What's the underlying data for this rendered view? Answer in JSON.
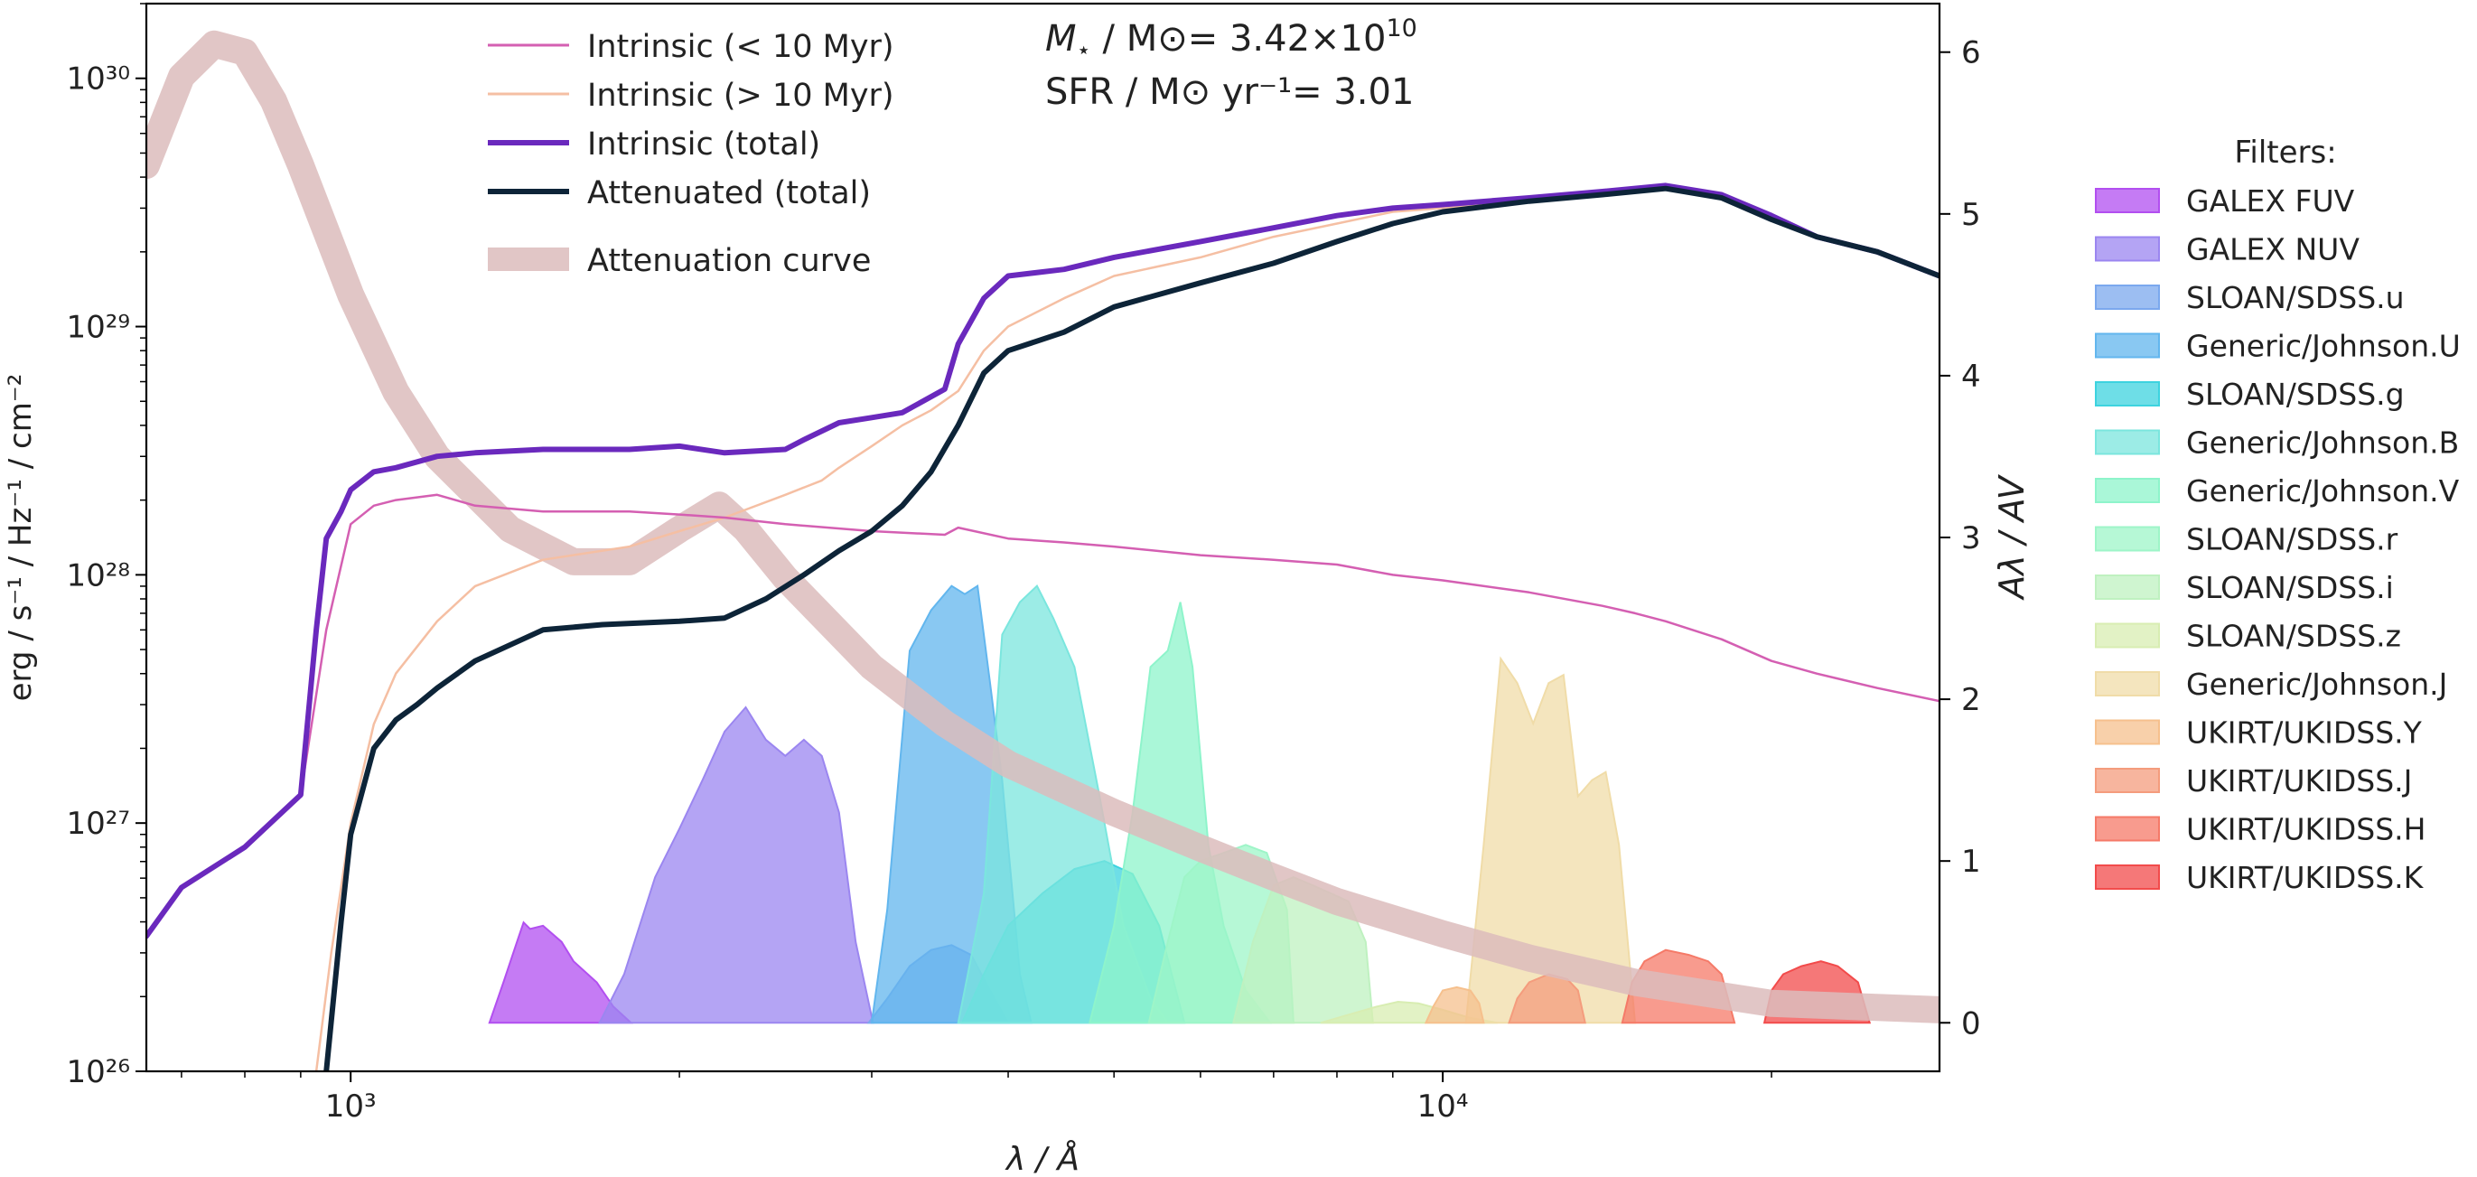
{
  "chart_data": {
    "type": "line",
    "title": "",
    "xlabel": "λ / Å",
    "ylabel": "erg / s⁻¹ / Hz⁻¹ / cm⁻²",
    "y2label": "Aλ / AV",
    "x_scale": "log",
    "y_scale": "log",
    "xlim": [
      650,
      28500
    ],
    "ylim": [
      1e+26,
      2e+30
    ],
    "y2lim": [
      -0.3,
      6.3
    ],
    "x_ticks": [
      {
        "value": 1000,
        "label": "10³"
      },
      {
        "value": 10000,
        "label": "10⁴"
      }
    ],
    "y_ticks": [
      {
        "value": 1e+26,
        "label": "10²⁶"
      },
      {
        "value": 1e+27,
        "label": "10²⁷"
      },
      {
        "value": 1e+28,
        "label": "10²⁸"
      },
      {
        "value": 1e+29,
        "label": "10²⁹"
      },
      {
        "value": 1e+30,
        "label": "10³⁰"
      }
    ],
    "y2_ticks": [
      {
        "value": 0,
        "label": "0"
      },
      {
        "value": 1,
        "label": "1"
      },
      {
        "value": 2,
        "label": "2"
      },
      {
        "value": 3,
        "label": "3"
      },
      {
        "value": 4,
        "label": "4"
      },
      {
        "value": 5,
        "label": "5"
      },
      {
        "value": 6,
        "label": "6"
      }
    ],
    "annotations": {
      "mass_prefix": "M",
      "mass_sub": "⋆",
      "mass_text": " / M⊙= 3.42×10",
      "mass_exp": "10",
      "sfr_text": "SFR / M⊙ yr⁻¹= 3.01"
    },
    "series": [
      {
        "name": "Intrinsic (< 10 Myr)",
        "color": "#d45fb2",
        "width": 2.5,
        "axis": "left",
        "x": [
          650,
          700,
          800,
          900,
          950,
          1000,
          1050,
          1100,
          1200,
          1300,
          1500,
          1800,
          2000,
          2200,
          2500,
          3000,
          3500,
          3600,
          4000,
          4500,
          5000,
          6000,
          7000,
          8000,
          9000,
          10000,
          12000,
          14000,
          15000,
          16000,
          18000,
          20000,
          22000,
          25000,
          28500
        ],
        "y": [
          3.5e+26,
          5.5e+26,
          8e+26,
          1.3e+27,
          6e+27,
          1.6e+28,
          1.9e+28,
          2e+28,
          2.1e+28,
          1.9e+28,
          1.8e+28,
          1.8e+28,
          1.75e+28,
          1.7e+28,
          1.6e+28,
          1.5e+28,
          1.45e+28,
          1.55e+28,
          1.4e+28,
          1.35e+28,
          1.3e+28,
          1.2e+28,
          1.15e+28,
          1.1e+28,
          1e+28,
          9.5e+27,
          8.5e+27,
          7.5e+27,
          7e+27,
          6.5e+27,
          5.5e+27,
          4.5e+27,
          4e+27,
          3.5e+27,
          3.1e+27
        ]
      },
      {
        "name": "Intrinsic (> 10 Myr)",
        "color": "#f5bfa3",
        "width": 2.5,
        "axis": "left",
        "x": [
          930,
          960,
          1000,
          1050,
          1100,
          1200,
          1300,
          1500,
          1800,
          2000,
          2200,
          2500,
          2700,
          2800,
          3000,
          3200,
          3400,
          3600,
          3800,
          4000,
          4500,
          5000,
          6000,
          7000,
          8000,
          9000,
          10000,
          12000,
          14000,
          16000,
          18000,
          20000,
          22000,
          25000,
          28500
        ],
        "y": [
          1e+26,
          3e+26,
          1e+27,
          2.5e+27,
          4e+27,
          6.5e+27,
          9e+27,
          1.15e+28,
          1.3e+28,
          1.5e+28,
          1.7e+28,
          2.1e+28,
          2.4e+28,
          2.7e+28,
          3.3e+28,
          4e+28,
          4.6e+28,
          5.5e+28,
          8e+28,
          1e+29,
          1.3e+29,
          1.6e+29,
          1.9e+29,
          2.3e+29,
          2.6e+29,
          2.9e+29,
          3e+29,
          3.2e+29,
          3.4e+29,
          3.6e+29,
          3.3e+29,
          2.7e+29,
          2.3e+29,
          2e+29,
          1.6e+29
        ]
      },
      {
        "name": "Intrinsic (total)",
        "color": "#6a29bd",
        "width": 6,
        "axis": "left",
        "x": [
          650,
          700,
          800,
          900,
          930,
          950,
          980,
          1000,
          1050,
          1100,
          1200,
          1300,
          1500,
          1800,
          2000,
          2200,
          2500,
          2600,
          2800,
          3000,
          3200,
          3500,
          3600,
          3800,
          4000,
          4500,
          5000,
          6000,
          7000,
          8000,
          9000,
          10000,
          12000,
          14000,
          16000,
          18000,
          20000,
          22000,
          25000,
          28500
        ],
        "y": [
          3.5e+26,
          5.5e+26,
          8e+26,
          1.3e+27,
          6e+27,
          1.4e+28,
          1.8e+28,
          2.2e+28,
          2.6e+28,
          2.7e+28,
          3e+28,
          3.1e+28,
          3.2e+28,
          3.2e+28,
          3.3e+28,
          3.1e+28,
          3.2e+28,
          3.5e+28,
          4.1e+28,
          4.3e+28,
          4.5e+28,
          5.6e+28,
          8.5e+28,
          1.3e+29,
          1.6e+29,
          1.7e+29,
          1.9e+29,
          2.2e+29,
          2.5e+29,
          2.8e+29,
          3e+29,
          3.1e+29,
          3.3e+29,
          3.5e+29,
          3.7e+29,
          3.4e+29,
          2.8e+29,
          2.3e+29,
          2e+29,
          1.6e+29
        ]
      },
      {
        "name": "Attenuated (total)",
        "color": "#0d2438",
        "width": 6,
        "axis": "left",
        "x": [
          950,
          980,
          1000,
          1050,
          1100,
          1150,
          1200,
          1300,
          1500,
          1700,
          2000,
          2200,
          2400,
          2600,
          2800,
          3000,
          3200,
          3400,
          3600,
          3800,
          4000,
          4500,
          5000,
          6000,
          7000,
          8000,
          9000,
          10000,
          12000,
          14000,
          16000,
          18000,
          20000,
          22000,
          25000,
          28500
        ],
        "y": [
          1e+26,
          4e+26,
          9e+26,
          2e+27,
          2.6e+27,
          3e+27,
          3.5e+27,
          4.5e+27,
          6e+27,
          6.3e+27,
          6.5e+27,
          6.7e+27,
          8e+27,
          1e+28,
          1.25e+28,
          1.5e+28,
          1.9e+28,
          2.6e+28,
          4e+28,
          6.5e+28,
          8e+28,
          9.5e+28,
          1.2e+29,
          1.5e+29,
          1.8e+29,
          2.2e+29,
          2.6e+29,
          2.9e+29,
          3.2e+29,
          3.4e+29,
          3.6e+29,
          3.3e+29,
          2.7e+29,
          2.3e+29,
          2e+29,
          1.6e+29
        ]
      },
      {
        "name": "Attenuation curve",
        "color": "#dcbcbc",
        "width": 30,
        "axis": "right",
        "x": [
          650,
          700,
          750,
          800,
          850,
          900,
          1000,
          1100,
          1200,
          1400,
          1600,
          1800,
          2000,
          2175,
          2300,
          2500,
          3000,
          3500,
          4000,
          5000,
          6000,
          7000,
          8000,
          10000,
          12000,
          15000,
          20000,
          28500
        ],
        "y": [
          5.3,
          5.85,
          6.05,
          6.0,
          5.7,
          5.3,
          4.5,
          3.9,
          3.5,
          3.05,
          2.85,
          2.85,
          3.05,
          3.2,
          3.05,
          2.75,
          2.2,
          1.85,
          1.6,
          1.3,
          1.08,
          0.9,
          0.75,
          0.55,
          0.4,
          0.25,
          0.12,
          0.08
        ]
      }
    ],
    "filters_title": "Filters:",
    "filters": [
      {
        "name": "GALEX FUV",
        "color": "#b24ff0",
        "x": [
          1340,
          1380,
          1420,
          1440,
          1460,
          1500,
          1560,
          1600,
          1680,
          1740,
          1806
        ],
        "y": [
          0,
          0.25,
          0.5,
          0.62,
          0.58,
          0.6,
          0.5,
          0.38,
          0.25,
          0.1,
          0
        ]
      },
      {
        "name": "GALEX NUV",
        "color": "#9b86f0",
        "x": [
          1690,
          1780,
          1900,
          2000,
          2100,
          2200,
          2300,
          2400,
          2500,
          2600,
          2700,
          2800,
          2900,
          3008
        ],
        "y": [
          0,
          0.3,
          0.9,
          1.2,
          1.5,
          1.8,
          1.95,
          1.75,
          1.65,
          1.75,
          1.65,
          1.3,
          0.5,
          0
        ]
      },
      {
        "name": "SLOAN/SDSS.u",
        "color": "#7ba8ee",
        "x": [
          2980,
          3100,
          3250,
          3400,
          3550,
          3700,
          3850,
          4000
        ],
        "y": [
          0,
          0.15,
          0.35,
          0.45,
          0.48,
          0.42,
          0.2,
          0
        ]
      },
      {
        "name": "Generic/Johnson.U",
        "color": "#62b6ee",
        "x": [
          3000,
          3100,
          3250,
          3400,
          3550,
          3650,
          3750,
          3850,
          3950,
          4100,
          4200
        ],
        "y": [
          0,
          0.7,
          2.3,
          2.55,
          2.7,
          2.65,
          2.7,
          2.1,
          1.5,
          0.3,
          0
        ]
      },
      {
        "name": "SLOAN/SDSS.g",
        "color": "#3dd3df",
        "x": [
          3630,
          3800,
          4000,
          4300,
          4600,
          4900,
          5200,
          5500,
          5800
        ],
        "y": [
          0,
          0.3,
          0.6,
          0.8,
          0.95,
          1.0,
          0.92,
          0.6,
          0
        ]
      },
      {
        "name": "Generic/Johnson.B",
        "color": "#7be6de",
        "x": [
          3600,
          3800,
          3950,
          4100,
          4250,
          4400,
          4600,
          4850,
          5100,
          5400,
          5600
        ],
        "y": [
          0,
          0.8,
          2.4,
          2.6,
          2.7,
          2.5,
          2.2,
          1.4,
          0.6,
          0.15,
          0
        ]
      },
      {
        "name": "Generic/Johnson.V",
        "color": "#8ef4cb",
        "x": [
          4750,
          5000,
          5200,
          5400,
          5600,
          5750,
          5900,
          6100,
          6300,
          6600,
          6950
        ],
        "y": [
          0,
          0.6,
          1.3,
          2.2,
          2.3,
          2.6,
          2.2,
          1.1,
          0.6,
          0.2,
          0
        ]
      },
      {
        "name": "SLOAN/SDSS.r",
        "color": "#9ef5c8",
        "x": [
          5380,
          5600,
          5800,
          6000,
          6300,
          6600,
          6900,
          7200,
          7300
        ],
        "y": [
          0,
          0.5,
          0.9,
          1.0,
          1.05,
          1.1,
          1.05,
          0.7,
          0
        ]
      },
      {
        "name": "SLOAN/SDSS.i",
        "color": "#bff1c0",
        "x": [
          6430,
          6700,
          7000,
          7300,
          7600,
          7900,
          8200,
          8500,
          8630
        ],
        "y": [
          0,
          0.5,
          0.85,
          0.9,
          0.85,
          0.8,
          0.75,
          0.5,
          0
        ]
      },
      {
        "name": "SLOAN/SDSS.z",
        "color": "#d8edb2",
        "x": [
          7730,
          8200,
          8700,
          9100,
          9500,
          10000,
          10600,
          11230
        ],
        "y": [
          0,
          0.05,
          0.1,
          0.13,
          0.12,
          0.08,
          0.03,
          0
        ]
      },
      {
        "name": "Generic/Johnson.J",
        "color": "#f0dca8",
        "x": [
          10500,
          10900,
          11300,
          11700,
          12100,
          12500,
          12900,
          13300,
          13700,
          14100,
          14500,
          15000
        ],
        "y": [
          0,
          1.1,
          2.25,
          2.1,
          1.85,
          2.1,
          2.15,
          1.4,
          1.5,
          1.55,
          1.1,
          0
        ]
      },
      {
        "name": "UKIRT/UKIDSS.Y",
        "color": "#f6c08d",
        "x": [
          9650,
          9800,
          10000,
          10300,
          10600,
          10800,
          10900
        ],
        "y": [
          0,
          0.1,
          0.2,
          0.22,
          0.2,
          0.12,
          0
        ]
      },
      {
        "name": "UKIRT/UKIDSS.J",
        "color": "#f49c7d",
        "x": [
          11500,
          11700,
          12000,
          12500,
          13000,
          13300,
          13500
        ],
        "y": [
          0,
          0.15,
          0.25,
          0.3,
          0.27,
          0.2,
          0
        ]
      },
      {
        "name": "UKIRT/UKIDSS.H",
        "color": "#f57a68",
        "x": [
          14600,
          14900,
          15300,
          16000,
          16800,
          17500,
          18000,
          18500
        ],
        "y": [
          0,
          0.25,
          0.38,
          0.45,
          0.42,
          0.38,
          0.3,
          0
        ]
      },
      {
        "name": "UKIRT/UKIDSS.K",
        "color": "#f24b4b",
        "x": [
          19700,
          20000,
          20500,
          21300,
          22200,
          23000,
          24000,
          24600
        ],
        "y": [
          0,
          0.2,
          0.3,
          0.35,
          0.38,
          0.35,
          0.25,
          0
        ]
      }
    ]
  }
}
